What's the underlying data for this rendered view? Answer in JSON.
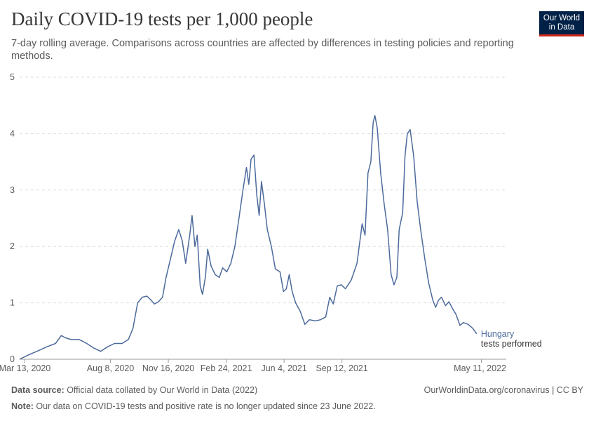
{
  "header": {
    "title": "Daily COVID-19 tests per 1,000 people",
    "subtitle": "7-day rolling average. Comparisons across countries are affected by differences in testing policies and reporting methods.",
    "logo_line1": "Our World",
    "logo_line2": "in Data"
  },
  "footer": {
    "source_label": "Data source:",
    "source_text": " Official data collated by Our World in Data (2022)",
    "url": "OurWorldinData.org/coronavirus | CC BY",
    "note_label": "Note:",
    "note_text": " Our data on COVID-19 tests and positive rate is no longer updated since 23 June 2022."
  },
  "chart_data": {
    "type": "line",
    "title": "Daily COVID-19 tests per 1,000 people",
    "ylabel": "",
    "xlabel": "",
    "ylim": [
      0,
      5
    ],
    "yticks": [
      0,
      1,
      2,
      3,
      4,
      5
    ],
    "x_domain": [
      "2020-03-04",
      "2022-06-23"
    ],
    "xticks": [
      {
        "date": "2020-03-13",
        "label": "Mar 13, 2020"
      },
      {
        "date": "2020-08-08",
        "label": "Aug 8, 2020"
      },
      {
        "date": "2020-11-16",
        "label": "Nov 16, 2020"
      },
      {
        "date": "2021-02-24",
        "label": "Feb 24, 2021"
      },
      {
        "date": "2021-06-04",
        "label": "Jun 4, 2021"
      },
      {
        "date": "2021-09-12",
        "label": "Sep 12, 2021"
      },
      {
        "date": "2022-05-11",
        "label": "May 11, 2022"
      }
    ],
    "grid": true,
    "color": "#4c6a9c",
    "series": [
      {
        "name": "Hungary",
        "sublabel": "tests performed",
        "points": [
          [
            "2020-03-04",
            0.0
          ],
          [
            "2020-03-20",
            0.08
          ],
          [
            "2020-04-05",
            0.15
          ],
          [
            "2020-04-20",
            0.22
          ],
          [
            "2020-05-05",
            0.28
          ],
          [
            "2020-05-15",
            0.42
          ],
          [
            "2020-05-22",
            0.38
          ],
          [
            "2020-06-01",
            0.35
          ],
          [
            "2020-06-15",
            0.35
          ],
          [
            "2020-06-28",
            0.28
          ],
          [
            "2020-07-10",
            0.2
          ],
          [
            "2020-07-22",
            0.14
          ],
          [
            "2020-08-03",
            0.22
          ],
          [
            "2020-08-15",
            0.28
          ],
          [
            "2020-08-28",
            0.28
          ],
          [
            "2020-09-08",
            0.35
          ],
          [
            "2020-09-16",
            0.55
          ],
          [
            "2020-09-24",
            1.0
          ],
          [
            "2020-10-02",
            1.1
          ],
          [
            "2020-10-10",
            1.12
          ],
          [
            "2020-10-17",
            1.05
          ],
          [
            "2020-10-23",
            0.98
          ],
          [
            "2020-10-30",
            1.02
          ],
          [
            "2020-11-06",
            1.1
          ],
          [
            "2020-11-12",
            1.45
          ],
          [
            "2020-11-19",
            1.75
          ],
          [
            "2020-11-27",
            2.1
          ],
          [
            "2020-12-04",
            2.3
          ],
          [
            "2020-12-10",
            2.1
          ],
          [
            "2020-12-16",
            1.7
          ],
          [
            "2020-12-23",
            2.2
          ],
          [
            "2020-12-27",
            2.55
          ],
          [
            "2021-01-01",
            2.0
          ],
          [
            "2021-01-05",
            2.2
          ],
          [
            "2021-01-10",
            1.3
          ],
          [
            "2021-01-14",
            1.15
          ],
          [
            "2021-01-19",
            1.45
          ],
          [
            "2021-01-23",
            1.95
          ],
          [
            "2021-01-29",
            1.65
          ],
          [
            "2021-02-05",
            1.5
          ],
          [
            "2021-02-12",
            1.45
          ],
          [
            "2021-02-18",
            1.62
          ],
          [
            "2021-02-25",
            1.55
          ],
          [
            "2021-03-04",
            1.7
          ],
          [
            "2021-03-11",
            2.0
          ],
          [
            "2021-03-18",
            2.5
          ],
          [
            "2021-03-25",
            3.0
          ],
          [
            "2021-03-31",
            3.4
          ],
          [
            "2021-04-04",
            3.1
          ],
          [
            "2021-04-08",
            3.55
          ],
          [
            "2021-04-13",
            3.62
          ],
          [
            "2021-04-18",
            2.9
          ],
          [
            "2021-04-22",
            2.55
          ],
          [
            "2021-04-26",
            3.15
          ],
          [
            "2021-05-01",
            2.75
          ],
          [
            "2021-05-06",
            2.3
          ],
          [
            "2021-05-13",
            2.0
          ],
          [
            "2021-05-20",
            1.6
          ],
          [
            "2021-05-28",
            1.55
          ],
          [
            "2021-06-03",
            1.2
          ],
          [
            "2021-06-08",
            1.25
          ],
          [
            "2021-06-13",
            1.5
          ],
          [
            "2021-06-18",
            1.2
          ],
          [
            "2021-06-24",
            1.0
          ],
          [
            "2021-07-02",
            0.85
          ],
          [
            "2021-07-10",
            0.62
          ],
          [
            "2021-07-18",
            0.7
          ],
          [
            "2021-07-28",
            0.68
          ],
          [
            "2021-08-06",
            0.7
          ],
          [
            "2021-08-15",
            0.75
          ],
          [
            "2021-08-22",
            1.1
          ],
          [
            "2021-08-28",
            0.98
          ],
          [
            "2021-09-04",
            1.3
          ],
          [
            "2021-09-11",
            1.32
          ],
          [
            "2021-09-18",
            1.25
          ],
          [
            "2021-09-28",
            1.4
          ],
          [
            "2021-10-08",
            1.7
          ],
          [
            "2021-10-17",
            2.4
          ],
          [
            "2021-10-22",
            2.2
          ],
          [
            "2021-10-27",
            3.3
          ],
          [
            "2021-11-01",
            3.5
          ],
          [
            "2021-11-05",
            4.2
          ],
          [
            "2021-11-08",
            4.32
          ],
          [
            "2021-11-12",
            4.1
          ],
          [
            "2021-11-18",
            3.3
          ],
          [
            "2021-11-24",
            2.75
          ],
          [
            "2021-11-30",
            2.3
          ],
          [
            "2021-12-06",
            1.5
          ],
          [
            "2021-12-11",
            1.32
          ],
          [
            "2021-12-16",
            1.45
          ],
          [
            "2021-12-20",
            2.3
          ],
          [
            "2021-12-26",
            2.6
          ],
          [
            "2021-12-30",
            3.6
          ],
          [
            "2022-01-03",
            4.0
          ],
          [
            "2022-01-08",
            4.07
          ],
          [
            "2022-01-14",
            3.6
          ],
          [
            "2022-01-20",
            2.8
          ],
          [
            "2022-01-26",
            2.3
          ],
          [
            "2022-02-02",
            1.8
          ],
          [
            "2022-02-09",
            1.35
          ],
          [
            "2022-02-16",
            1.05
          ],
          [
            "2022-02-21",
            0.92
          ],
          [
            "2022-02-26",
            1.05
          ],
          [
            "2022-03-03",
            1.1
          ],
          [
            "2022-03-10",
            0.95
          ],
          [
            "2022-03-16",
            1.02
          ],
          [
            "2022-03-22",
            0.9
          ],
          [
            "2022-03-28",
            0.8
          ],
          [
            "2022-04-04",
            0.6
          ],
          [
            "2022-04-10",
            0.65
          ],
          [
            "2022-04-18",
            0.62
          ],
          [
            "2022-04-26",
            0.55
          ],
          [
            "2022-05-03",
            0.45
          ]
        ]
      }
    ]
  }
}
